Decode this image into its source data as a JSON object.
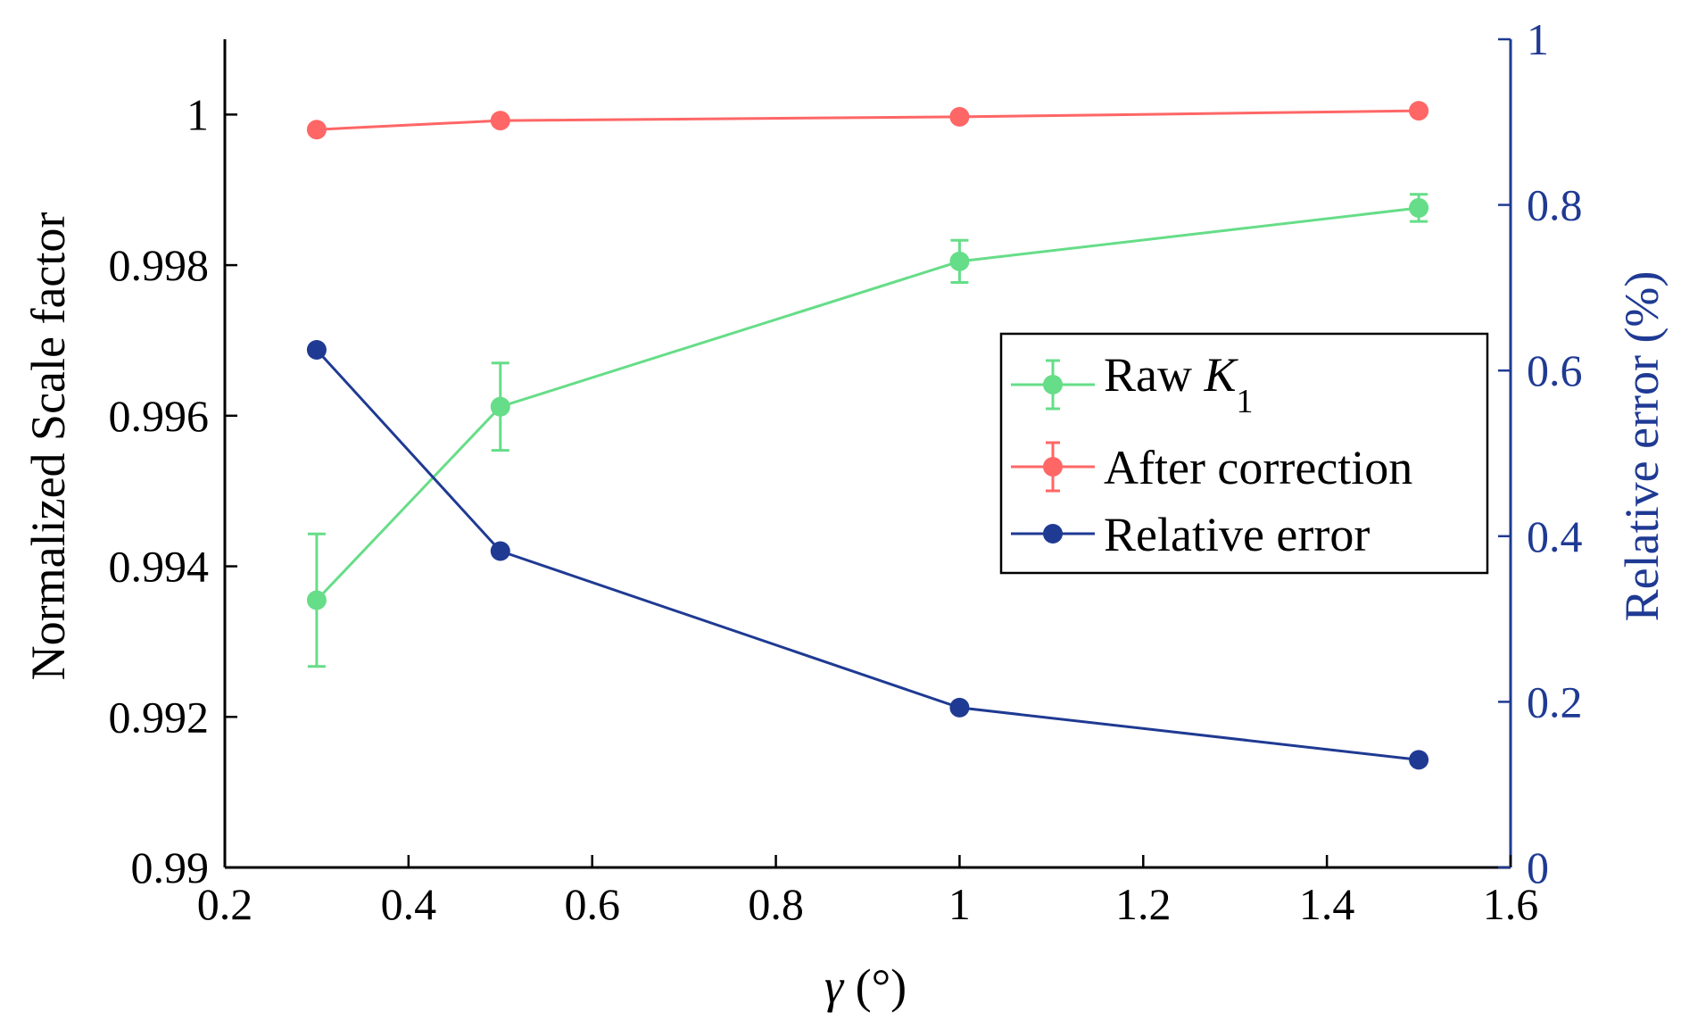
{
  "chart_data": {
    "type": "line",
    "x": [
      0.3,
      0.5,
      1,
      1.5
    ],
    "xlim": [
      0.2,
      1.6
    ],
    "xticks": [
      "0.2",
      "0.4",
      "0.6",
      "0.8",
      "1",
      "1.2",
      "1.4",
      "1.6"
    ],
    "xticks_values": [
      0.2,
      0.4,
      0.6,
      0.8,
      1.0,
      1.2,
      1.4,
      1.6
    ],
    "xlabel_symbol": "γ",
    "xlabel_unit": " (°)",
    "ylabel_left": "Normalized Scale factor",
    "ylim_left": [
      0.99,
      1.001
    ],
    "yticks_left": [
      "0.99",
      "0.992",
      "0.994",
      "0.996",
      "0.998",
      "1"
    ],
    "yticks_left_values": [
      0.99,
      0.992,
      0.994,
      0.996,
      0.998,
      1.0
    ],
    "ylabel_right": "Relative error (%)",
    "ylim_right": [
      0,
      1
    ],
    "yticks_right": [
      "0",
      "0.2",
      "0.4",
      "0.6",
      "0.8",
      "1"
    ],
    "yticks_right_values": [
      0,
      0.2,
      0.4,
      0.6,
      0.8,
      1.0
    ],
    "grid": false,
    "legend_position": "center-right",
    "series": [
      {
        "name": "Raw K1",
        "label_main": "Raw ",
        "label_italic": "K",
        "label_sub": "1",
        "axis": "left",
        "color": "#66dd88",
        "values": [
          0.99355,
          0.99612,
          0.99805,
          0.99876
        ],
        "errors": [
          0.00088,
          0.00058,
          0.00028,
          0.00018
        ]
      },
      {
        "name": "After correction",
        "label_main": "After correction",
        "axis": "left",
        "color": "#ff6666",
        "values": [
          0.9998,
          0.99992,
          0.99997,
          1.00005
        ],
        "errors": [
          0,
          0,
          0,
          0
        ]
      },
      {
        "name": "Relative error",
        "label_main": "Relative error",
        "axis": "right",
        "color": "#1f3a93",
        "values": [
          0.625,
          0.382,
          0.193,
          0.13
        ],
        "errors": null
      }
    ]
  }
}
